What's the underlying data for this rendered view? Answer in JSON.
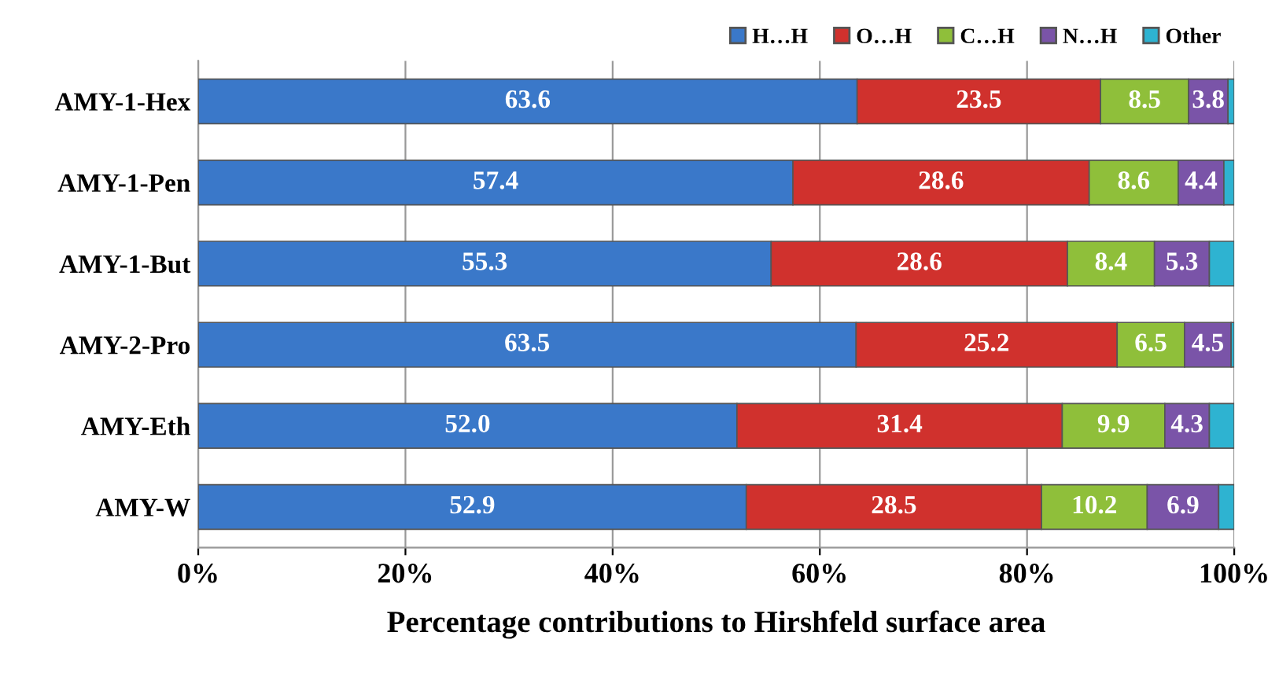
{
  "chart_data": {
    "type": "bar",
    "orientation": "horizontal",
    "stacked": true,
    "xlabel": "Percentage contributions to Hirshfeld surface area",
    "categories": [
      "AMY-1-Hex",
      "AMY-1-Pen",
      "AMY-1-But",
      "AMY-2-Pro",
      "AMY-Eth",
      "AMY-W"
    ],
    "series": [
      {
        "name": "H…H",
        "color": "#3a78c9",
        "values": [
          63.6,
          57.4,
          55.3,
          63.5,
          52.0,
          52.9
        ],
        "value_labels": [
          "63.6",
          "57.4",
          "55.3",
          "63.5",
          "52.0",
          "52.9"
        ]
      },
      {
        "name": "O…H",
        "color": "#d0312d",
        "values": [
          23.5,
          28.6,
          28.6,
          25.2,
          31.4,
          28.5
        ],
        "value_labels": [
          "23.5",
          "28.6",
          "28.6",
          "25.2",
          "31.4",
          "28.5"
        ]
      },
      {
        "name": "C…H",
        "color": "#8fbf3a",
        "values": [
          8.5,
          8.6,
          8.4,
          6.5,
          9.9,
          10.2
        ],
        "value_labels": [
          "8.5",
          "8.6",
          "8.4",
          "6.5",
          "9.9",
          "10.2"
        ]
      },
      {
        "name": "N…H",
        "color": "#7a54a8",
        "values": [
          3.8,
          4.4,
          5.3,
          4.5,
          4.3,
          6.9
        ],
        "value_labels": [
          "3.8",
          "4.4",
          "5.3",
          "4.5",
          "4.3",
          "6.9"
        ]
      },
      {
        "name": "Other",
        "color": "#2eb3d1",
        "values": [
          0.6,
          1.0,
          2.4,
          0.3,
          2.4,
          1.5
        ],
        "value_labels": [
          null,
          null,
          null,
          null,
          null,
          null
        ]
      }
    ],
    "xlim": [
      0,
      100
    ],
    "xticks": [
      {
        "value": 0,
        "label": "0%"
      },
      {
        "value": 20,
        "label": "20%"
      },
      {
        "value": 40,
        "label": "40%"
      },
      {
        "value": 60,
        "label": "60%"
      },
      {
        "value": 80,
        "label": "80%"
      },
      {
        "value": 100,
        "label": "100%"
      }
    ],
    "grid": "x",
    "legend": "top right"
  }
}
